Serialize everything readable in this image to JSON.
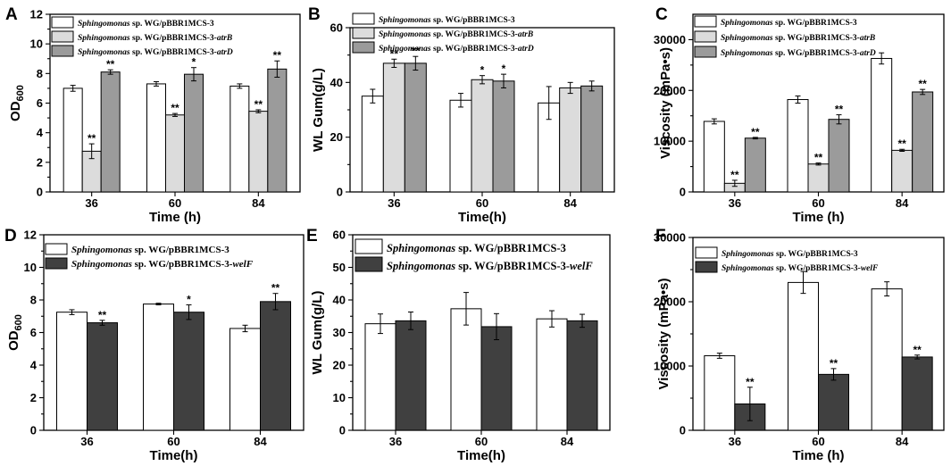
{
  "chart_data": [
    {
      "panel": "A",
      "type": "bar",
      "title": "",
      "xlabel": "Time (h)",
      "ylabel": "OD",
      "ylabel_sub": "600",
      "ylim": [
        0,
        12
      ],
      "yticks": [
        0,
        2,
        4,
        6,
        8,
        10,
        12
      ],
      "categories": [
        "36",
        "60",
        "84"
      ],
      "series": [
        {
          "name": "WG/pBBR1MCS-3",
          "color": "#ffffff",
          "values": [
            7.0,
            7.3,
            7.15
          ],
          "errors": [
            0.2,
            0.15,
            0.15
          ],
          "sig": [
            "",
            "",
            ""
          ],
          "legend": [
            "Sphingomonas",
            " sp. WG/pBBR1MCS-3",
            ""
          ]
        },
        {
          "name": "WG/pBBR1MCS-3-atrB",
          "color": "#dcdcdc",
          "values": [
            2.75,
            5.2,
            5.45
          ],
          "errors": [
            0.5,
            0.1,
            0.1
          ],
          "sig": [
            "**",
            "**",
            "**"
          ],
          "legend": [
            "Sphingomonas",
            " sp. WG/pBBR1MCS-3-",
            "atrB"
          ]
        },
        {
          "name": "WG/pBBR1MCS-3-atrD",
          "color": "#9b9b9b",
          "values": [
            8.1,
            7.95,
            8.3
          ],
          "errors": [
            0.15,
            0.45,
            0.55
          ],
          "sig": [
            "**",
            "*",
            "**"
          ],
          "legend": [
            "Sphingomonas",
            " sp. WG/pBBR1MCS-3-",
            "atrD"
          ]
        }
      ]
    },
    {
      "panel": "B",
      "type": "bar",
      "title": "",
      "xlabel": "Time(h)",
      "ylabel": "WL Gum(g/L)",
      "ylim": [
        0,
        60
      ],
      "yticks": [
        0,
        20,
        40,
        60
      ],
      "categories": [
        "36",
        "60",
        "84"
      ],
      "series": [
        {
          "name": "WG/pBBR1MCS-3",
          "color": "#ffffff",
          "values": [
            35,
            33.5,
            32.5
          ],
          "errors": [
            2.5,
            2.5,
            6
          ],
          "sig": [
            "",
            "",
            ""
          ],
          "legend": [
            "Sphingomonas",
            " sp. WG/pBBR1MCS-3",
            ""
          ]
        },
        {
          "name": "WG/pBBR1MCS-3-atrB",
          "color": "#dcdcdc",
          "values": [
            47,
            41,
            38
          ],
          "errors": [
            1.5,
            1.5,
            2
          ],
          "sig": [
            "**",
            "*",
            ""
          ],
          "legend": [
            "Sphingomonas",
            " sp. WG/pBBR1MCS-3-",
            "atrB"
          ]
        },
        {
          "name": "WG/pBBR1MCS-3-atrD",
          "color": "#9b9b9b",
          "values": [
            47,
            40.5,
            38.7
          ],
          "errors": [
            2.5,
            2.5,
            1.8
          ],
          "sig": [
            "**",
            "*",
            ""
          ],
          "legend": [
            "Sphingomonas",
            " sp. WG/pBBR1MCS-3-",
            "atrD"
          ]
        }
      ]
    },
    {
      "panel": "C",
      "type": "bar",
      "title": "",
      "xlabel": "Time (h)",
      "ylabel": "Viscosity (mPa•s)",
      "ylim": [
        0,
        35000
      ],
      "yticks": [
        0,
        10000,
        20000,
        30000
      ],
      "categories": [
        "36",
        "60",
        "84"
      ],
      "series": [
        {
          "name": "WG/pBBR1MCS-3",
          "color": "#ffffff",
          "values": [
            13900,
            18200,
            26300
          ],
          "errors": [
            500,
            700,
            1100
          ],
          "sig": [
            "",
            "",
            ""
          ],
          "legend": [
            "Sphingomonas",
            " sp. WG/pBBR1MCS-3",
            ""
          ]
        },
        {
          "name": "WG/pBBR1MCS-3-atrB",
          "color": "#dcdcdc",
          "values": [
            1700,
            5500,
            8200
          ],
          "errors": [
            600,
            200,
            200
          ],
          "sig": [
            "**",
            "**",
            "**"
          ],
          "legend": [
            "Sphingomonas",
            " sp. WG/pBBR1MCS-3-",
            "atrB"
          ]
        },
        {
          "name": "WG/pBBR1MCS-3-atrD",
          "color": "#9b9b9b",
          "values": [
            10600,
            14300,
            19700
          ],
          "errors": [
            150,
            900,
            500
          ],
          "sig": [
            "**",
            "**",
            "**"
          ],
          "legend": [
            "Sphingomonas",
            " sp. WG/pBBR1MCS-3-",
            "atrD"
          ]
        }
      ]
    },
    {
      "panel": "D",
      "type": "bar",
      "title": "",
      "xlabel": "Time(h)",
      "ylabel": "OD",
      "ylabel_sub": "600",
      "ylim": [
        0,
        12
      ],
      "yticks": [
        0,
        2,
        4,
        6,
        8,
        10,
        12
      ],
      "categories": [
        "36",
        "60",
        "84"
      ],
      "series": [
        {
          "name": "WG/pBBR1MCS-3",
          "color": "#ffffff",
          "values": [
            7.25,
            7.75,
            6.25
          ],
          "errors": [
            0.15,
            0.05,
            0.2
          ],
          "sig": [
            "",
            "",
            ""
          ],
          "legend": [
            "Sphingomonas",
            " sp. WG/pBBR1MCS-3",
            ""
          ]
        },
        {
          "name": "WG/pBBR1MCS-3-welF",
          "color": "#404040",
          "values": [
            6.6,
            7.25,
            7.9
          ],
          "errors": [
            0.15,
            0.45,
            0.5
          ],
          "sig": [
            "**",
            "*",
            "**"
          ],
          "legend": [
            "Sphingomonas",
            " sp. WG/pBBR1MCS-3-",
            "welF"
          ]
        }
      ]
    },
    {
      "panel": "E",
      "type": "bar",
      "title": "",
      "xlabel": "Time(h)",
      "ylabel": "WL Gum(g/L)",
      "ylim": [
        0,
        60
      ],
      "yticks": [
        0,
        10,
        20,
        30,
        40,
        50,
        60
      ],
      "categories": [
        "36",
        "60",
        "84"
      ],
      "series": [
        {
          "name": "WG/pBBR1MCS-3",
          "color": "#ffffff",
          "values": [
            32.7,
            37.3,
            34.2
          ],
          "errors": [
            3,
            5,
            2.5
          ],
          "sig": [
            "",
            "",
            ""
          ],
          "legend": [
            "Sphingomonas",
            " sp. WG/pBBR1MCS-3",
            ""
          ]
        },
        {
          "name": "WG/pBBR1MCS-3-welF",
          "color": "#404040",
          "values": [
            33.6,
            31.8,
            33.6
          ],
          "errors": [
            2.7,
            4,
            2
          ],
          "sig": [
            "",
            "",
            ""
          ],
          "legend": [
            "Sphingomonas",
            " sp. WG/pBBR1MCS-3-",
            "welF"
          ]
        }
      ]
    },
    {
      "panel": "F",
      "type": "bar",
      "title": "",
      "xlabel": "Time (h)",
      "ylabel": "Viscosity (mPa•s)",
      "ylim": [
        0,
        30000
      ],
      "yticks": [
        0,
        10000,
        20000,
        30000
      ],
      "categories": [
        "36",
        "60",
        "84"
      ],
      "series": [
        {
          "name": "WG/pBBR1MCS-3",
          "color": "#ffffff",
          "values": [
            11600,
            23000,
            22000
          ],
          "errors": [
            400,
            1700,
            1100
          ],
          "sig": [
            "",
            "",
            ""
          ],
          "legend": [
            "Sphingomonas",
            " sp. WG/pBBR1MCS-3",
            ""
          ]
        },
        {
          "name": "WG/pBBR1MCS-3-welF",
          "color": "#404040",
          "values": [
            4100,
            8700,
            11400
          ],
          "errors": [
            2600,
            900,
            300
          ],
          "sig": [
            "**",
            "**",
            "**"
          ],
          "legend": [
            "Sphingomonas",
            " sp. WG/pBBR1MCS-3-",
            "welF"
          ]
        }
      ]
    }
  ]
}
